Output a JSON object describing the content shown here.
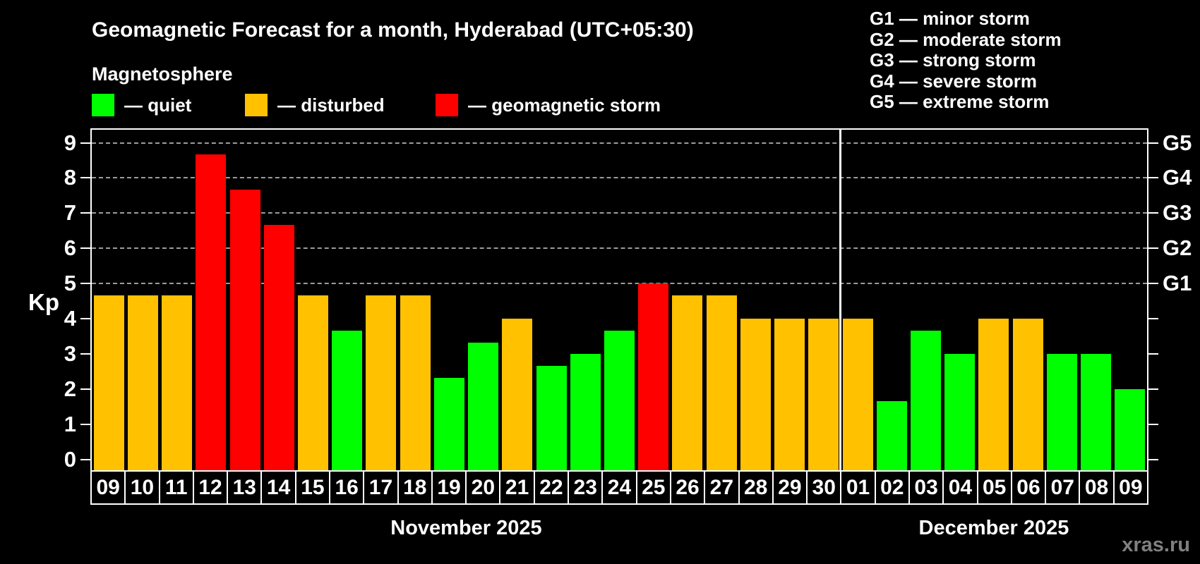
{
  "title": "Geomagnetic Forecast for a month, Hyderabad (UTC+05:30)",
  "subtitle": "Magnetosphere",
  "legend": [
    {
      "key": "quiet",
      "label": "— quiet",
      "color": "#00ff00"
    },
    {
      "key": "disturbed",
      "label": "— disturbed",
      "color": "#ffc100"
    },
    {
      "key": "storm",
      "label": "— geomagnetic storm",
      "color": "#ff0000"
    }
  ],
  "storm_scale_legend": [
    "G1 — minor storm",
    "G2 — moderate storm",
    "G3 — strong storm",
    "G4 — severe storm",
    "G5 — extreme storm"
  ],
  "y_axis": {
    "label": "Kp",
    "ticks": [
      0,
      1,
      2,
      3,
      4,
      5,
      6,
      7,
      8,
      9
    ]
  },
  "right_axis": {
    "labels": [
      {
        "text": "G5",
        "kp": 9
      },
      {
        "text": "G4",
        "kp": 8
      },
      {
        "text": "G3",
        "kp": 7
      },
      {
        "text": "G2",
        "kp": 6
      },
      {
        "text": "G1",
        "kp": 5
      }
    ]
  },
  "watermark": "xras.ru",
  "chart_data": {
    "type": "bar",
    "title": "Geomagnetic Forecast for a month, Hyderabad (UTC+05:30)",
    "xlabel": "",
    "ylabel": "Kp",
    "ylim": [
      0,
      9
    ],
    "grid": "dashed horizontal lines at Kp 5-9 only",
    "legend_position": "top-left",
    "categories": [
      "09",
      "10",
      "11",
      "12",
      "13",
      "14",
      "15",
      "16",
      "17",
      "18",
      "19",
      "20",
      "21",
      "22",
      "23",
      "24",
      "25",
      "26",
      "27",
      "28",
      "29",
      "30",
      "01",
      "02",
      "03",
      "04",
      "05",
      "06",
      "07",
      "08",
      "09"
    ],
    "series": [
      {
        "name": "Kp forecast",
        "values": [
          4.67,
          4.67,
          4.67,
          8.67,
          7.67,
          6.67,
          4.67,
          3.67,
          4.67,
          4.67,
          2.33,
          3.33,
          4.0,
          2.67,
          3.0,
          3.67,
          5.0,
          4.67,
          4.67,
          4.0,
          4.0,
          4.0,
          4.0,
          1.67,
          3.67,
          3.0,
          4.0,
          4.0,
          3.0,
          3.0,
          2.0
        ]
      }
    ],
    "states": [
      "disturbed",
      "disturbed",
      "disturbed",
      "storm",
      "storm",
      "storm",
      "disturbed",
      "quiet",
      "disturbed",
      "disturbed",
      "quiet",
      "quiet",
      "disturbed",
      "quiet",
      "quiet",
      "quiet",
      "storm",
      "disturbed",
      "disturbed",
      "disturbed",
      "disturbed",
      "disturbed",
      "disturbed",
      "quiet",
      "quiet",
      "quiet",
      "disturbed",
      "disturbed",
      "quiet",
      "quiet",
      "quiet"
    ],
    "colors_by_state": {
      "quiet": "#00ff00",
      "disturbed": "#ffc100",
      "storm": "#ff0000"
    },
    "gridlines_kp": [
      5,
      6,
      7,
      8,
      9
    ],
    "months": [
      {
        "label": "November 2025",
        "days": 22
      },
      {
        "label": "December 2025",
        "days": 9
      }
    ]
  }
}
